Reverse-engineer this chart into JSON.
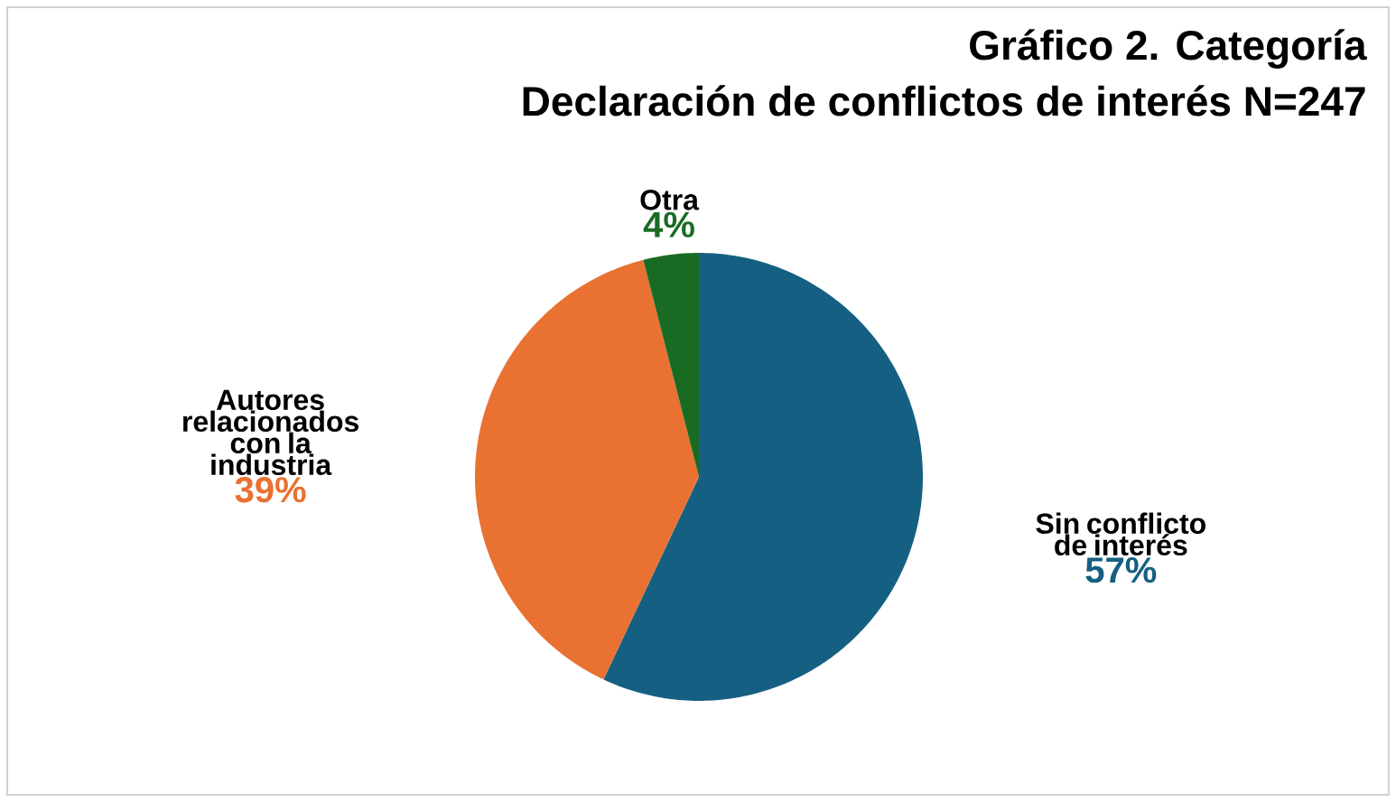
{
  "chart_data": {
    "type": "pie",
    "title": "Gráfico 2. Categoría",
    "subtitle": "Declaración de conflictos de interés N=247",
    "categories": [
      "Sin conflicto de interés",
      "Autores relacionados con la industria",
      "Otra"
    ],
    "values": [
      57,
      39,
      4
    ],
    "colors": [
      "#156082",
      "#e97132",
      "#196b24"
    ],
    "value_labels": [
      "57%",
      "39%",
      "4%"
    ]
  }
}
